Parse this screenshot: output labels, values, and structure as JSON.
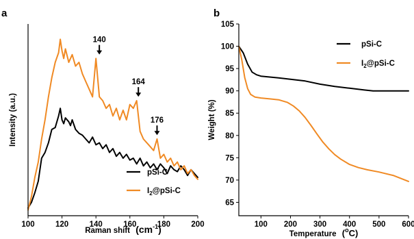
{
  "chart_data": [
    {
      "panel_label": "a",
      "type": "line",
      "xlabel": "Raman shift",
      "xlabel_unit": "(cm",
      "xlabel_unit_sup": "-1",
      "xlabel_unit_end": ")",
      "ylabel": "Intensity (a.u.)",
      "xlim": [
        100,
        200
      ],
      "ylim": [
        0,
        1
      ],
      "x_ticks": [
        100,
        120,
        140,
        160,
        180,
        200
      ],
      "y_ticks_shown": false,
      "legend_position": "bottom-right",
      "series": [
        {
          "name": "pSi-C",
          "color": "#000000",
          "x": [
            100,
            102,
            104,
            106,
            108,
            110,
            112,
            114,
            116,
            118,
            119,
            120,
            121,
            122,
            124,
            125,
            126,
            128,
            130,
            132,
            134,
            136,
            138,
            140,
            142,
            144,
            146,
            148,
            150,
            152,
            154,
            156,
            158,
            160,
            162,
            164,
            166,
            168,
            170,
            172,
            174,
            176,
            178,
            180,
            182,
            184,
            186,
            188,
            190,
            192,
            194,
            196,
            198,
            200
          ],
          "y": [
            0.04,
            0.07,
            0.12,
            0.18,
            0.3,
            0.33,
            0.38,
            0.45,
            0.46,
            0.52,
            0.56,
            0.5,
            0.48,
            0.51,
            0.49,
            0.47,
            0.5,
            0.45,
            0.43,
            0.42,
            0.4,
            0.38,
            0.41,
            0.37,
            0.38,
            0.35,
            0.37,
            0.33,
            0.35,
            0.31,
            0.33,
            0.3,
            0.32,
            0.29,
            0.3,
            0.27,
            0.3,
            0.26,
            0.28,
            0.25,
            0.27,
            0.24,
            0.27,
            0.25,
            0.22,
            0.26,
            0.24,
            0.23,
            0.26,
            0.24,
            0.21,
            0.24,
            0.22,
            0.2
          ]
        },
        {
          "name": "I2@pSi-C",
          "name_base": "I",
          "name_sub": "2",
          "name_rest": "@pSi-C",
          "color": "#F08A24",
          "x": [
            100,
            102,
            104,
            106,
            108,
            110,
            112,
            114,
            116,
            118,
            119,
            120,
            121,
            122,
            124,
            126,
            128,
            130,
            132,
            134,
            136,
            138,
            140,
            142,
            144,
            146,
            148,
            150,
            152,
            154,
            156,
            158,
            160,
            162,
            164,
            166,
            168,
            170,
            172,
            174,
            176,
            178,
            180,
            182,
            184,
            186,
            188,
            190,
            192,
            194,
            196,
            198,
            200
          ],
          "y": [
            0.03,
            0.1,
            0.2,
            0.28,
            0.4,
            0.5,
            0.62,
            0.72,
            0.8,
            0.85,
            0.92,
            0.86,
            0.82,
            0.87,
            0.8,
            0.84,
            0.78,
            0.8,
            0.74,
            0.7,
            0.66,
            0.62,
            0.82,
            0.62,
            0.6,
            0.56,
            0.58,
            0.52,
            0.56,
            0.5,
            0.55,
            0.5,
            0.58,
            0.56,
            0.6,
            0.44,
            0.4,
            0.38,
            0.36,
            0.34,
            0.4,
            0.3,
            0.32,
            0.28,
            0.3,
            0.26,
            0.28,
            0.24,
            0.26,
            0.22,
            0.24,
            0.21,
            0.19
          ]
        }
      ],
      "annotations": [
        {
          "label": "140",
          "x": 142,
          "y": 0.83
        },
        {
          "label": "164",
          "x": 165,
          "y": 0.61
        },
        {
          "label": "176",
          "x": 176,
          "y": 0.41
        }
      ]
    },
    {
      "panel_label": "b",
      "type": "line",
      "xlabel": "Temperature",
      "xlabel_unit": "(",
      "xlabel_unit_sup": "o",
      "xlabel_unit_end": "C)",
      "ylabel": "Weight (%)",
      "xlim": [
        25,
        600
      ],
      "ylim": [
        62,
        105
      ],
      "x_ticks": [
        100,
        200,
        300,
        400,
        500,
        600
      ],
      "y_ticks": [
        65,
        70,
        75,
        80,
        85,
        90,
        95,
        100,
        105
      ],
      "legend_position": "top-right",
      "series": [
        {
          "name": "pSi-C",
          "color": "#000000",
          "x": [
            25,
            40,
            55,
            70,
            85,
            100,
            130,
            160,
            200,
            250,
            300,
            350,
            400,
            450,
            480,
            500,
            550,
            600
          ],
          "y": [
            100,
            98.5,
            96,
            94.2,
            93.6,
            93.3,
            93.1,
            92.9,
            92.6,
            92.2,
            91.5,
            91,
            90.6,
            90.2,
            90.0,
            90.0,
            90.0,
            90.0
          ]
        },
        {
          "name": "I2@pSi-C",
          "name_base": "I",
          "name_sub": "2",
          "name_rest": "@pSi-C",
          "color": "#F08A24",
          "x": [
            25,
            35,
            45,
            55,
            65,
            80,
            100,
            130,
            160,
            190,
            210,
            230,
            250,
            270,
            290,
            310,
            330,
            350,
            370,
            400,
            430,
            460,
            500,
            550,
            600
          ],
          "y": [
            100,
            97,
            93,
            90.5,
            89.2,
            88.6,
            88.4,
            88.2,
            88.0,
            87.4,
            86.6,
            85.5,
            84.0,
            82.2,
            80.3,
            78.5,
            77.0,
            75.7,
            74.7,
            73.5,
            72.8,
            72.3,
            71.8,
            71.0,
            69.7
          ]
        }
      ]
    }
  ]
}
